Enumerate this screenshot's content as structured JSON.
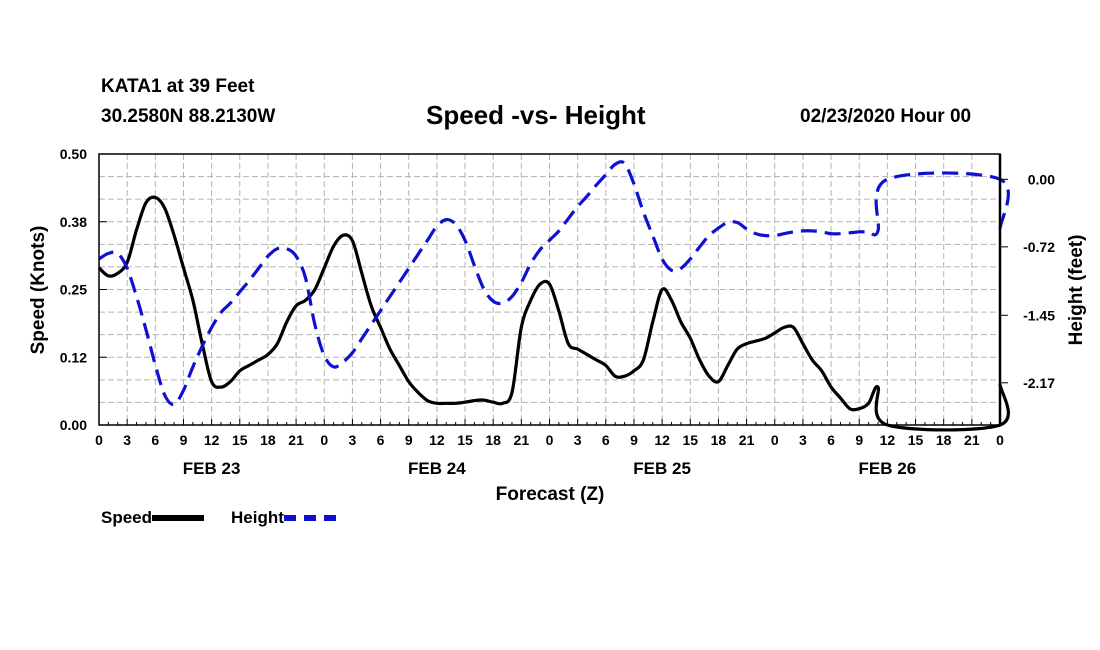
{
  "header": {
    "station": "KATA1 at 39 Feet",
    "coords": "30.2580N 88.2130W",
    "title": "Speed -vs- Height",
    "run": "02/23/2020 Hour 00"
  },
  "legend": {
    "speed_label": "Speed",
    "height_label": "Height"
  },
  "colors": {
    "speed": "#000000",
    "height": "#1010d0",
    "grid": "#b4b4b4"
  },
  "chart_data": {
    "type": "line",
    "title": "Speed -vs- Height",
    "xlabel": "Forecast (Z)",
    "ylabel": "Speed (Knots)",
    "y2label": "Height (feet)",
    "xlim": [
      0,
      96
    ],
    "ylim": [
      0,
      0.5
    ],
    "y2lim": [
      -2.62,
      0.27
    ],
    "y_ticks": [
      "0.00",
      "0.12",
      "0.25",
      "0.38",
      "0.50"
    ],
    "y_tick_values": [
      0,
      0.125,
      0.25,
      0.375,
      0.5
    ],
    "y2_ticks": [
      "0.00",
      "-0.72",
      "-1.45",
      "-2.17"
    ],
    "y2_tick_values": [
      0,
      -0.72,
      -1.45,
      -2.17
    ],
    "x_ticks": [
      "0",
      "3",
      "6",
      "9",
      "12",
      "15",
      "18",
      "21",
      "0",
      "3",
      "6",
      "9",
      "12",
      "15",
      "18",
      "21",
      "0",
      "3",
      "6",
      "9",
      "12",
      "15",
      "18",
      "21",
      "0",
      "3",
      "6",
      "9",
      "12",
      "15",
      "18",
      "21",
      "0"
    ],
    "x_tick_hours": [
      0,
      3,
      6,
      9,
      12,
      15,
      18,
      21,
      24,
      27,
      30,
      33,
      36,
      39,
      42,
      45,
      48,
      51,
      54,
      57,
      60,
      63,
      66,
      69,
      72,
      75,
      78,
      81,
      84,
      87,
      90,
      93,
      96
    ],
    "date_labels": [
      "FEB 23",
      "FEB 24",
      "FEB 25",
      "FEB 26"
    ],
    "date_label_hours": [
      12,
      36,
      60,
      84
    ],
    "grid": true,
    "legend": "bottom-left",
    "series": [
      {
        "name": "Speed",
        "axis": "left",
        "x": [
          0,
          1,
          2,
          3,
          4,
          5,
          6,
          7,
          8,
          9,
          10,
          11,
          12,
          13,
          14,
          15,
          16,
          17,
          18,
          19,
          20,
          21,
          22,
          23,
          24,
          25,
          26,
          27,
          28,
          29,
          30,
          31,
          32,
          33,
          34,
          35,
          36,
          37,
          38,
          39,
          40,
          41,
          42,
          43,
          44,
          45,
          46,
          47,
          48,
          49,
          50,
          51,
          52,
          53,
          54,
          55,
          56,
          57,
          58,
          59,
          60,
          61,
          62,
          63,
          64,
          65,
          66,
          67,
          68,
          69,
          70,
          71,
          72,
          73,
          74,
          75,
          76,
          77,
          78,
          79,
          80,
          81,
          82,
          83,
          84,
          85,
          86,
          87,
          88,
          89,
          90,
          91,
          92,
          93,
          94,
          95,
          96
        ],
        "values": [
          0.29,
          0.275,
          0.28,
          0.3,
          0.36,
          0.41,
          0.42,
          0.4,
          0.35,
          0.29,
          0.23,
          0.15,
          0.08,
          0.07,
          0.08,
          0.1,
          0.11,
          0.12,
          0.13,
          0.15,
          0.19,
          0.22,
          0.23,
          0.25,
          0.29,
          0.33,
          0.35,
          0.34,
          0.28,
          0.22,
          0.18,
          0.14,
          0.11,
          0.08,
          0.06,
          0.045,
          0.04,
          0.04,
          0.04,
          0.042,
          0.045,
          0.046,
          0.042,
          0.04,
          0.06,
          0.18,
          0.23,
          0.26,
          0.26,
          0.21,
          0.15,
          0.14,
          0.13,
          0.12,
          0.11,
          0.09,
          0.09,
          0.1,
          0.12,
          0.19,
          0.25,
          0.23,
          0.19,
          0.16,
          0.12,
          0.09,
          0.08,
          0.11,
          0.14,
          0.15,
          0.155,
          0.16,
          0.17,
          0.18,
          0.18,
          0.15,
          0.12,
          0.1,
          0.07,
          0.05,
          0.03,
          0.03,
          0.04,
          0.07,
          0.0,
          0.0,
          0.0,
          0.0,
          0.0,
          0.0,
          0.0,
          0.0,
          0.0,
          0.0,
          0.0,
          0.0,
          0.0
        ]
      },
      {
        "name": "Height",
        "axis": "right",
        "x": [
          0,
          1,
          2,
          3,
          4,
          5,
          6,
          7,
          8,
          9,
          10,
          11,
          12,
          13,
          14,
          15,
          16,
          17,
          18,
          19,
          20,
          21,
          22,
          23,
          24,
          25,
          26,
          27,
          28,
          29,
          30,
          31,
          32,
          33,
          34,
          35,
          36,
          37,
          38,
          39,
          40,
          41,
          42,
          43,
          44,
          45,
          46,
          47,
          48,
          49,
          50,
          51,
          52,
          53,
          54,
          55,
          56,
          57,
          58,
          59,
          60,
          61,
          62,
          63,
          64,
          65,
          66,
          67,
          68,
          69,
          70,
          71,
          72,
          73,
          74,
          75,
          76,
          77,
          78,
          79,
          80,
          81,
          82,
          83,
          84,
          85,
          86,
          87,
          88,
          89,
          90,
          91,
          92,
          93,
          94,
          95,
          96
        ],
        "values": [
          -0.85,
          -0.79,
          -0.79,
          -0.95,
          -1.25,
          -1.6,
          -1.98,
          -2.3,
          -2.4,
          -2.25,
          -2.0,
          -1.78,
          -1.58,
          -1.42,
          -1.32,
          -1.2,
          -1.08,
          -0.95,
          -0.82,
          -0.74,
          -0.74,
          -0.82,
          -1.05,
          -1.55,
          -1.88,
          -2.0,
          -1.95,
          -1.85,
          -1.7,
          -1.55,
          -1.4,
          -1.25,
          -1.1,
          -0.95,
          -0.8,
          -0.65,
          -0.5,
          -0.43,
          -0.48,
          -0.65,
          -0.92,
          -1.17,
          -1.3,
          -1.32,
          -1.25,
          -1.1,
          -0.9,
          -0.75,
          -0.65,
          -0.55,
          -0.42,
          -0.29,
          -0.18,
          -0.06,
          0.05,
          0.16,
          0.17,
          -0.05,
          -0.35,
          -0.6,
          -0.85,
          -0.97,
          -0.95,
          -0.85,
          -0.72,
          -0.6,
          -0.52,
          -0.46,
          -0.46,
          -0.53,
          -0.58,
          -0.6,
          -0.6,
          -0.58,
          -0.56,
          -0.55,
          -0.55,
          -0.56,
          -0.58,
          -0.58,
          -0.57,
          -0.56,
          -0.56,
          -0.55,
          0,
          0,
          0,
          0,
          0,
          0,
          0,
          0,
          0,
          0,
          0,
          0,
          0
        ]
      }
    ]
  }
}
